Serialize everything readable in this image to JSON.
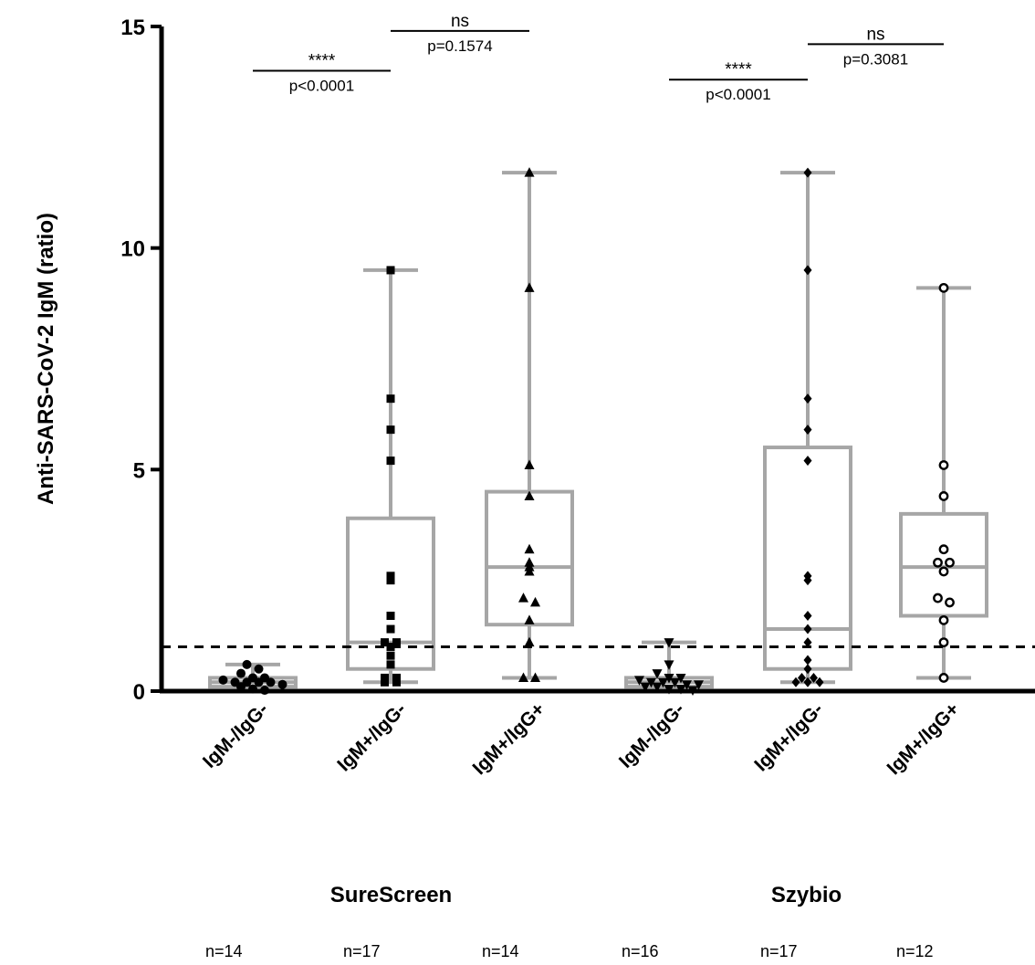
{
  "chart_data": {
    "type": "box",
    "ylabel": "Anti-SARS-CoV-2 IgM (ratio)",
    "ylim": [
      0,
      15
    ],
    "yticks": [
      "0",
      "5",
      "10",
      "15"
    ],
    "cutoff": 1.0,
    "groups": [
      {
        "name": "SureScreen",
        "categories": [
          {
            "label": "IgM-/IgG-",
            "n": "n=14",
            "marker": "circle",
            "box": {
              "min": 0.0,
              "q1": 0.1,
              "median": 0.2,
              "q3": 0.3,
              "max": 0.6
            },
            "points": [
              0.6,
              0.5,
              0.4,
              0.3,
              0.3,
              0.25,
              0.2,
              0.2,
              0.2,
              0.2,
              0.15,
              0.1,
              0.05,
              0.02
            ]
          },
          {
            "label": "IgM+/IgG-",
            "n": "n=17",
            "marker": "square",
            "box": {
              "min": 0.2,
              "q1": 0.5,
              "median": 1.1,
              "q3": 3.9,
              "max": 9.5
            },
            "points": [
              9.5,
              6.6,
              5.9,
              5.2,
              2.6,
              2.5,
              1.7,
              1.4,
              1.1,
              1.1,
              1.0,
              0.8,
              0.6,
              0.3,
              0.3,
              0.2,
              0.2
            ]
          },
          {
            "label": "IgM+/IgG+",
            "n": "n=14",
            "marker": "triangle-up",
            "box": {
              "min": 0.3,
              "q1": 1.5,
              "median": 2.8,
              "q3": 4.5,
              "max": 11.7
            },
            "points": [
              11.7,
              9.1,
              5.1,
              4.4,
              3.2,
              2.9,
              2.8,
              2.7,
              2.1,
              2.0,
              1.6,
              1.1,
              0.3,
              0.3
            ]
          }
        ]
      },
      {
        "name": "Szybio",
        "categories": [
          {
            "label": "IgM-/IgG-",
            "n": "n=16",
            "marker": "triangle-down",
            "box": {
              "min": 0.0,
              "q1": 0.1,
              "median": 0.2,
              "q3": 0.3,
              "max": 1.1
            },
            "points": [
              1.1,
              0.6,
              0.4,
              0.3,
              0.3,
              0.25,
              0.2,
              0.2,
              0.2,
              0.15,
              0.15,
              0.1,
              0.1,
              0.05,
              0.05,
              0.02
            ]
          },
          {
            "label": "IgM+/IgG-",
            "n": "n=17",
            "marker": "diamond",
            "box": {
              "min": 0.2,
              "q1": 0.5,
              "median": 1.4,
              "q3": 5.5,
              "max": 11.7
            },
            "points": [
              11.7,
              9.5,
              6.6,
              5.9,
              5.2,
              2.6,
              2.5,
              1.7,
              1.4,
              1.1,
              0.7,
              0.5,
              0.3,
              0.3,
              0.2,
              0.2,
              0.2
            ]
          },
          {
            "label": "IgM+/IgG+",
            "n": "n=12",
            "marker": "open-circle",
            "box": {
              "min": 0.3,
              "q1": 1.7,
              "median": 2.8,
              "q3": 4.0,
              "max": 9.1
            },
            "points": [
              9.1,
              5.1,
              4.4,
              3.2,
              2.9,
              2.9,
              2.7,
              2.1,
              2.0,
              1.6,
              1.1,
              0.3
            ]
          }
        ]
      }
    ],
    "comparisons": [
      {
        "group": 0,
        "from": 0,
        "to": 1,
        "stars": "****",
        "p": "p<0.0001",
        "y": 14.0
      },
      {
        "group": 0,
        "from": 1,
        "to": 2,
        "stars": "ns",
        "p": "p=0.1574",
        "y": 14.9
      },
      {
        "group": 1,
        "from": 0,
        "to": 1,
        "stars": "****",
        "p": "p<0.0001",
        "y": 13.8
      },
      {
        "group": 1,
        "from": 1,
        "to": 2,
        "stars": "ns",
        "p": "p=0.3081",
        "y": 14.6
      }
    ],
    "colors": {
      "box": "#a6a6a6",
      "axis": "#000000",
      "points": "#000000"
    }
  }
}
